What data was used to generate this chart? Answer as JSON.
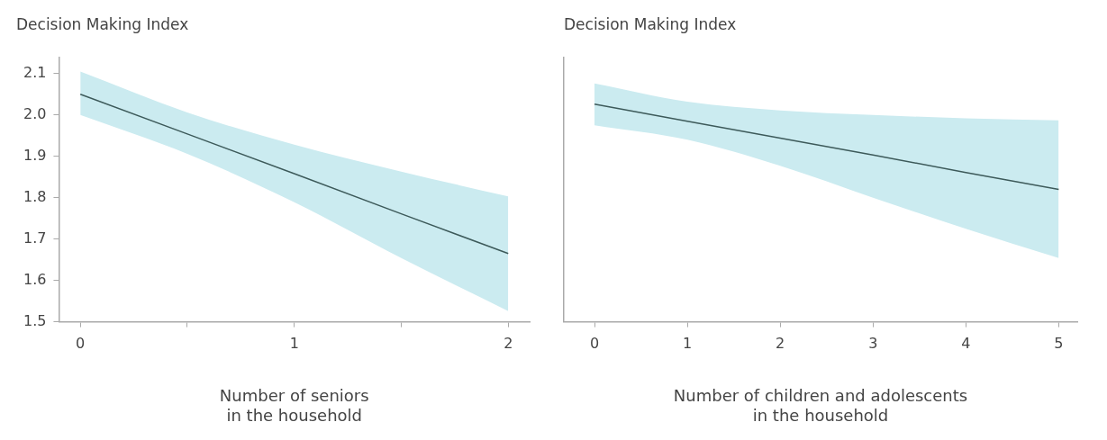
{
  "chart_data": [
    {
      "type": "line",
      "ylabel": "Decision Making Index",
      "xlabel": "Number of seniors\nin the household",
      "x": [
        0,
        0.5,
        1,
        1.5,
        2
      ],
      "series": [
        {
          "color": "#3d5a5a",
          "values": [
            2.05,
            1.954,
            1.858,
            1.761,
            1.665
          ],
          "lower": [
            2.0,
            1.906,
            1.789,
            1.654,
            1.526
          ],
          "upper": [
            2.105,
            2.006,
            1.928,
            1.863,
            1.803
          ]
        }
      ],
      "xlim": [
        -0.1,
        2.1
      ],
      "xticks": [
        0,
        {
          "value": 0.5,
          "label": null
        },
        1,
        {
          "value": 1.5,
          "label": null
        },
        2
      ],
      "ylim": [
        1.5,
        2.14
      ],
      "yticks": [
        1.5,
        1.6,
        1.7,
        1.8,
        1.9,
        {
          "value": 2,
          "label": "2.0"
        },
        2.1
      ],
      "grid": false,
      "legend": false,
      "marker": "none"
    },
    {
      "type": "line",
      "ylabel": "Decision Making Index",
      "xlabel": "Number of children and adolescents\nin the household",
      "x": [
        0,
        1,
        2,
        3,
        4,
        5
      ],
      "series": [
        {
          "color": "#3d5a5a",
          "values": [
            2.026,
            1.985,
            1.944,
            1.903,
            1.861,
            1.82
          ],
          "lower": [
            1.975,
            1.94,
            1.877,
            1.8,
            1.725,
            1.654
          ],
          "upper": [
            2.076,
            2.032,
            2.011,
            2.0,
            1.992,
            1.987
          ]
        }
      ],
      "xlim": [
        -0.33,
        5.2
      ],
      "xticks": [
        0,
        1,
        2,
        3,
        4,
        5
      ],
      "ylim": [
        1.5,
        2.14
      ],
      "tick_labels": "x",
      "grid": false,
      "legend": false,
      "marker": "none"
    }
  ]
}
